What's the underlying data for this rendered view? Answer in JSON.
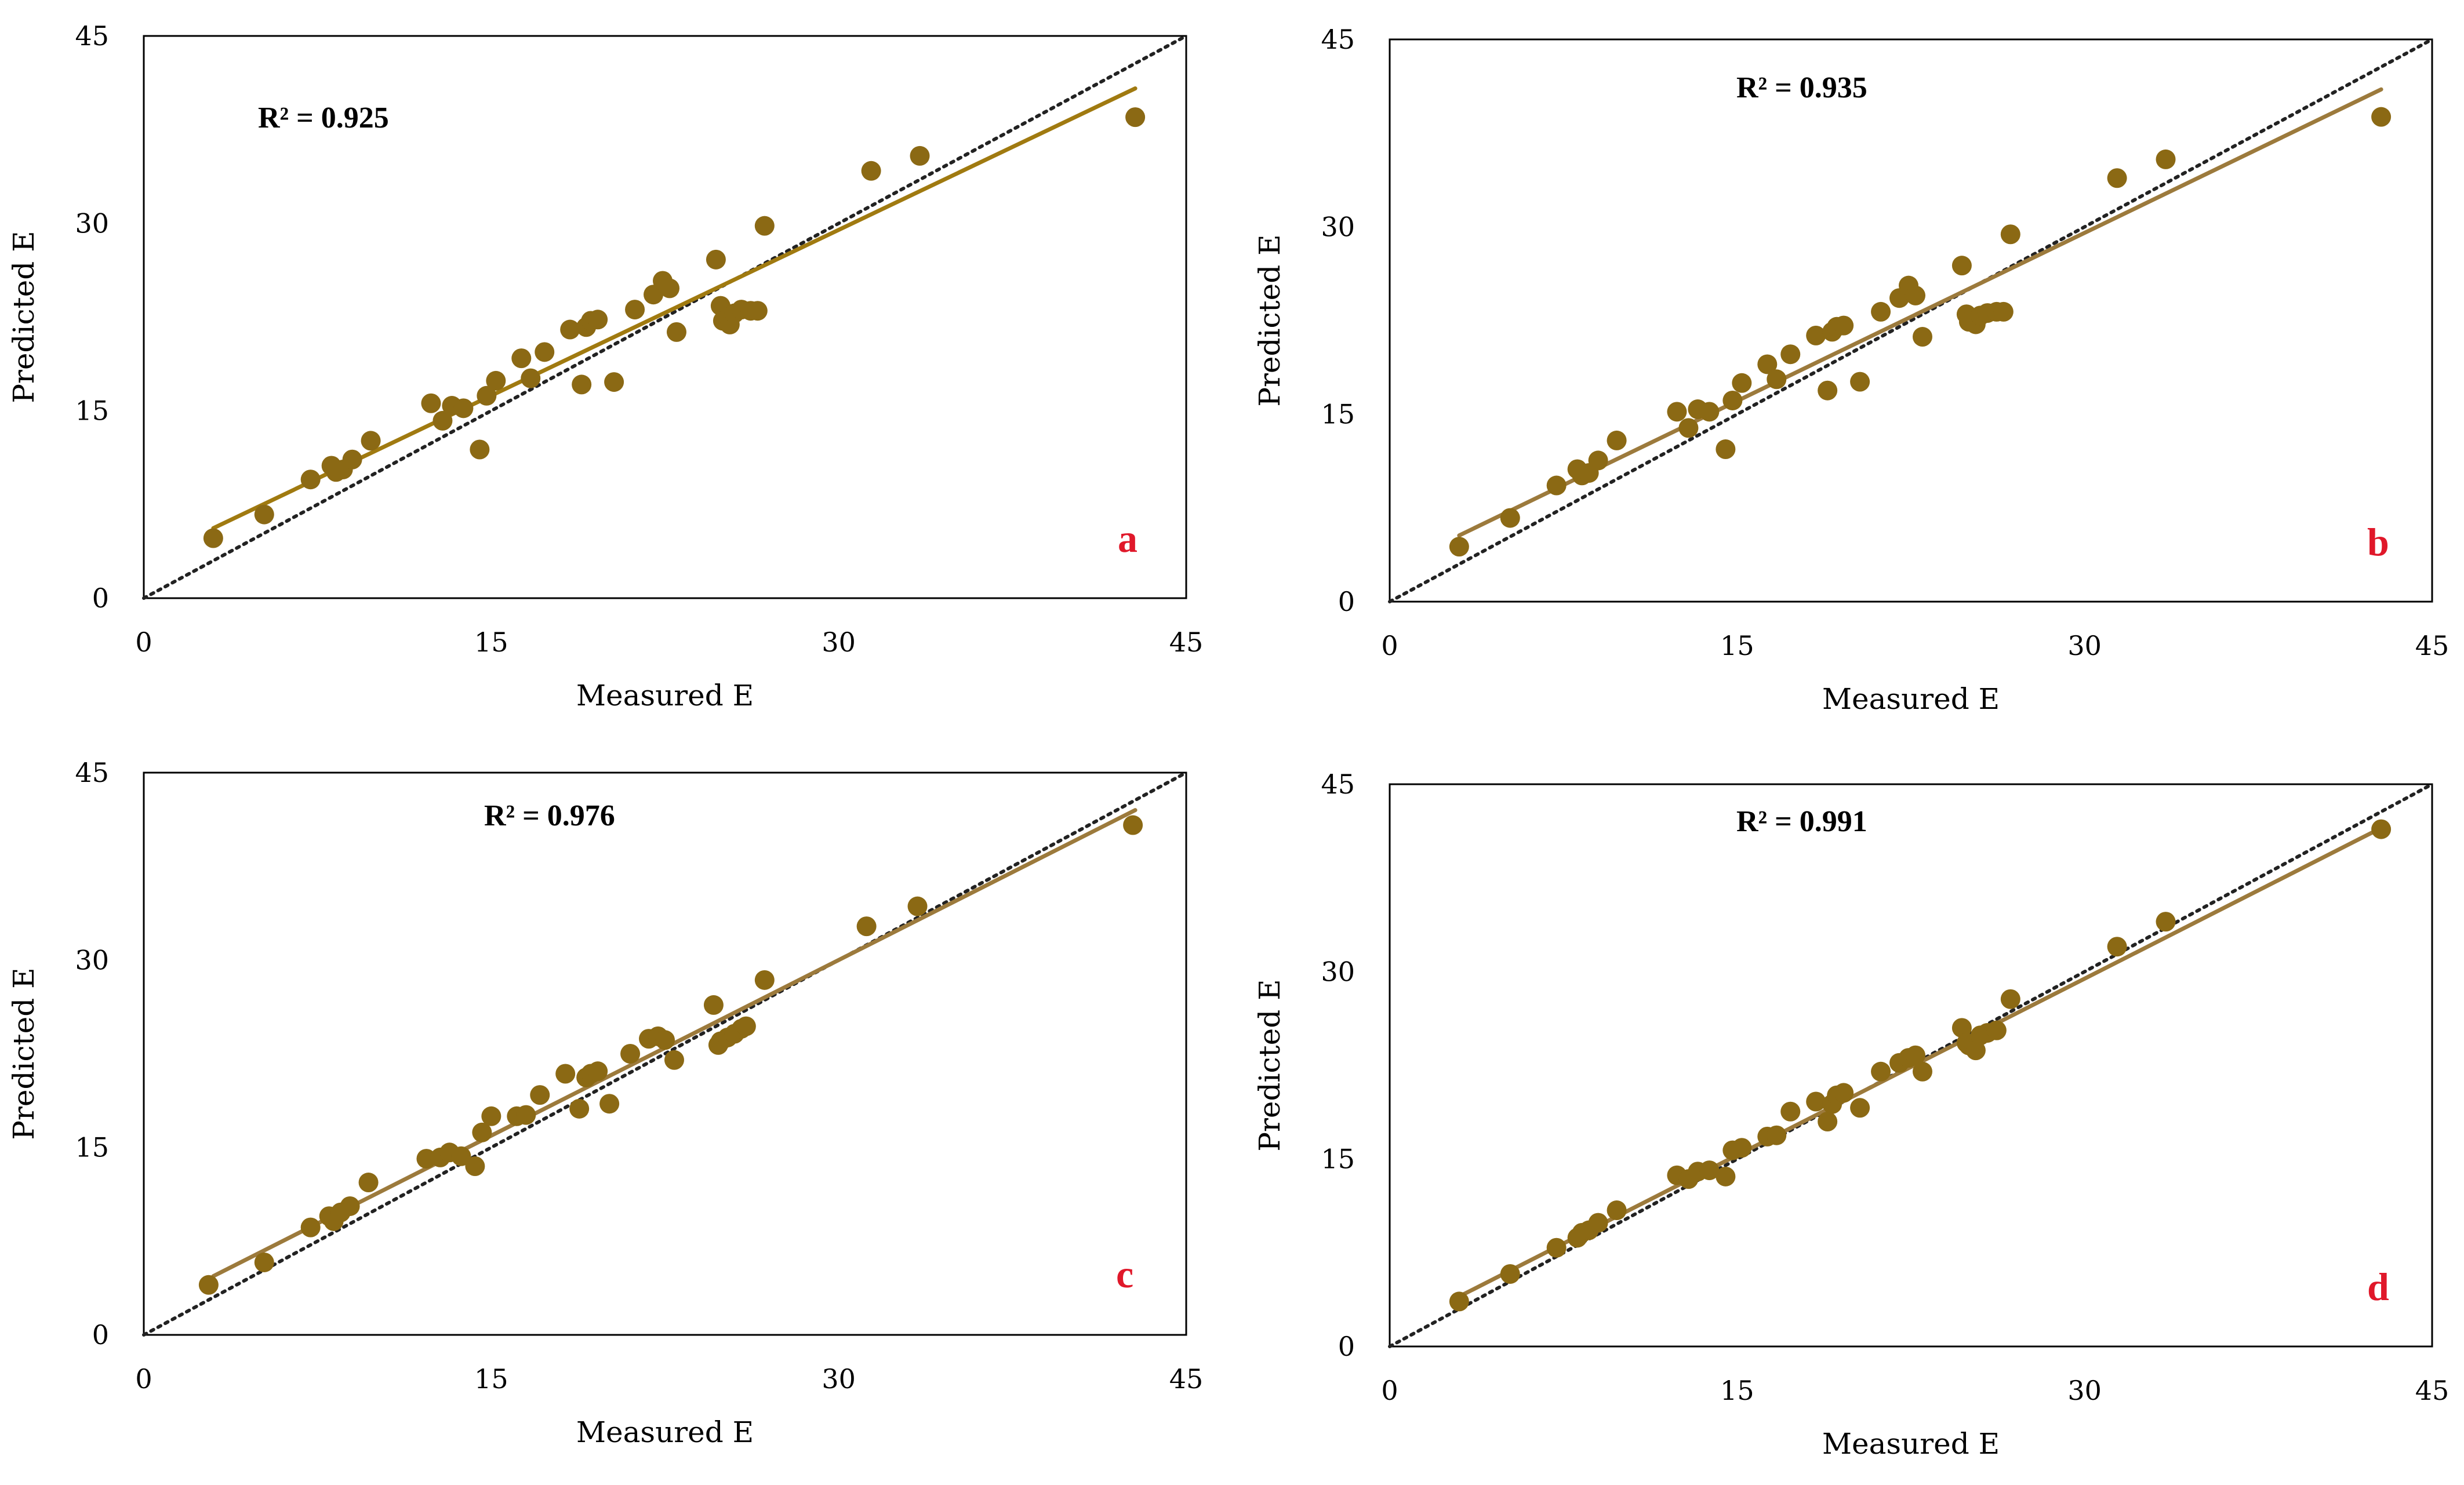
{
  "style": {
    "point_color": "#8B6914",
    "fit_color_a": "#A07A10",
    "fit_color": "#9C7A3C",
    "identity_color": "#222222",
    "letter_color": "#E0182A",
    "frame_color": "#000000"
  },
  "axes": {
    "xlabel": "Measured E",
    "ylabel": "Predicted E",
    "xlim": [
      0,
      45
    ],
    "ylim": [
      0,
      45
    ],
    "ticks": [
      "0",
      "15",
      "30",
      "45"
    ],
    "tick_values": [
      0,
      15,
      30,
      45
    ]
  },
  "chart_data": [
    {
      "type": "scatter",
      "panel": "a",
      "r2_text": "R² = 0.925",
      "xlabel": "Measured E",
      "ylabel": "Predicted E",
      "xlim": [
        0,
        45
      ],
      "ylim": [
        0,
        45
      ],
      "fit_line": {
        "x": [
          3,
          42.8
        ],
        "y": [
          5.6,
          40.8
        ]
      },
      "identity_line": {
        "x": [
          0,
          45
        ],
        "y": [
          0,
          45
        ]
      },
      "points": [
        [
          3,
          4.8
        ],
        [
          5.2,
          6.7
        ],
        [
          7.2,
          9.5
        ],
        [
          8.1,
          10.6
        ],
        [
          8.3,
          10.1
        ],
        [
          8.6,
          10.3
        ],
        [
          9,
          11.1
        ],
        [
          9.8,
          12.6
        ],
        [
          12.4,
          15.6
        ],
        [
          12.9,
          14.2
        ],
        [
          13.3,
          15.4
        ],
        [
          13.8,
          15.2
        ],
        [
          14.5,
          11.9
        ],
        [
          14.8,
          16.2
        ],
        [
          15.2,
          17.4
        ],
        [
          16.3,
          19.2
        ],
        [
          16.7,
          17.6
        ],
        [
          17.3,
          19.7
        ],
        [
          18.4,
          21.5
        ],
        [
          18.9,
          17.1
        ],
        [
          19.1,
          21.7
        ],
        [
          19.3,
          22.2
        ],
        [
          19.6,
          22.3
        ],
        [
          20.3,
          17.3
        ],
        [
          21.2,
          23.1
        ],
        [
          22,
          24.3
        ],
        [
          22.4,
          25.4
        ],
        [
          22.7,
          24.8
        ],
        [
          23,
          21.3
        ],
        [
          24.7,
          27.1
        ],
        [
          24.9,
          23.4
        ],
        [
          25,
          22.2
        ],
        [
          25.3,
          21.9
        ],
        [
          25.5,
          22.8
        ],
        [
          25.8,
          23.1
        ],
        [
          26.2,
          23
        ],
        [
          26.5,
          23
        ],
        [
          26.8,
          29.8
        ],
        [
          31.4,
          34.2
        ],
        [
          33.5,
          35.4
        ],
        [
          42.8,
          38.5
        ]
      ]
    },
    {
      "type": "scatter",
      "panel": "b",
      "r2_text": "R² = 0.935",
      "xlabel": "Measured E",
      "ylabel": "Predicted E",
      "xlim": [
        0,
        45
      ],
      "ylim": [
        0,
        45
      ],
      "fit_line": {
        "x": [
          3,
          42.8
        ],
        "y": [
          5.3,
          41
        ]
      },
      "identity_line": {
        "x": [
          0,
          45
        ],
        "y": [
          0,
          45
        ]
      },
      "points": [
        [
          3,
          4.4
        ],
        [
          5.2,
          6.7
        ],
        [
          7.2,
          9.3
        ],
        [
          8.1,
          10.6
        ],
        [
          8.3,
          10.1
        ],
        [
          8.6,
          10.3
        ],
        [
          9,
          11.3
        ],
        [
          9.8,
          12.9
        ],
        [
          12.4,
          15.2
        ],
        [
          12.9,
          13.9
        ],
        [
          13.3,
          15.4
        ],
        [
          13.8,
          15.2
        ],
        [
          14.5,
          12.2
        ],
        [
          14.8,
          16.1
        ],
        [
          15.2,
          17.5
        ],
        [
          16.3,
          19
        ],
        [
          16.7,
          17.8
        ],
        [
          17.3,
          19.8
        ],
        [
          18.4,
          21.3
        ],
        [
          18.9,
          16.9
        ],
        [
          19.1,
          21.6
        ],
        [
          19.3,
          22
        ],
        [
          19.6,
          22.1
        ],
        [
          20.3,
          17.6
        ],
        [
          21.2,
          23.2
        ],
        [
          22,
          24.3
        ],
        [
          22.4,
          25.3
        ],
        [
          22.7,
          24.5
        ],
        [
          23,
          21.2
        ],
        [
          24.7,
          26.9
        ],
        [
          24.9,
          23
        ],
        [
          25,
          22.4
        ],
        [
          25.3,
          22.2
        ],
        [
          25.5,
          22.9
        ],
        [
          25.8,
          23.1
        ],
        [
          26.2,
          23.2
        ],
        [
          26.5,
          23.2
        ],
        [
          26.8,
          29.4
        ],
        [
          31.4,
          33.9
        ],
        [
          33.5,
          35.4
        ],
        [
          42.8,
          38.8
        ]
      ]
    },
    {
      "type": "scatter",
      "panel": "c",
      "r2_text": "R² = 0.976",
      "xlabel": "Measured E",
      "ylabel": "Predicted E",
      "xlim": [
        0,
        45
      ],
      "ylim": [
        0,
        45
      ],
      "fit_line": {
        "x": [
          3,
          42.8
        ],
        "y": [
          4.7,
          42
        ]
      },
      "identity_line": {
        "x": [
          0,
          45
        ],
        "y": [
          0,
          45
        ]
      },
      "points": [
        [
          2.8,
          4
        ],
        [
          5.2,
          5.8
        ],
        [
          7.2,
          8.6
        ],
        [
          8,
          9.5
        ],
        [
          8.2,
          9.1
        ],
        [
          8.5,
          9.8
        ],
        [
          8.9,
          10.3
        ],
        [
          9.7,
          12.2
        ],
        [
          12.2,
          14.1
        ],
        [
          12.8,
          14.2
        ],
        [
          13.2,
          14.6
        ],
        [
          13.7,
          14.3
        ],
        [
          14.3,
          13.5
        ],
        [
          14.6,
          16.2
        ],
        [
          15,
          17.5
        ],
        [
          16.1,
          17.5
        ],
        [
          16.5,
          17.6
        ],
        [
          17.1,
          19.2
        ],
        [
          18.2,
          20.9
        ],
        [
          18.8,
          18.1
        ],
        [
          19.1,
          20.6
        ],
        [
          19.3,
          20.9
        ],
        [
          19.6,
          21.1
        ],
        [
          20.1,
          18.5
        ],
        [
          21,
          22.5
        ],
        [
          21.8,
          23.7
        ],
        [
          22.2,
          23.9
        ],
        [
          22.5,
          23.6
        ],
        [
          22.9,
          22
        ],
        [
          24.6,
          26.4
        ],
        [
          24.8,
          23.2
        ],
        [
          24.9,
          23.5
        ],
        [
          25.2,
          23.8
        ],
        [
          25.5,
          24.1
        ],
        [
          25.8,
          24.5
        ],
        [
          26,
          24.7
        ],
        [
          26.8,
          28.4
        ],
        [
          31.2,
          32.7
        ],
        [
          33.4,
          34.3
        ],
        [
          42.7,
          40.8
        ]
      ]
    },
    {
      "type": "scatter",
      "panel": "d",
      "r2_text": "R² = 0.991",
      "xlabel": "Measured E",
      "ylabel": "Predicted E",
      "xlim": [
        0,
        45
      ],
      "ylim": [
        0,
        45
      ],
      "fit_line": {
        "x": [
          3,
          42.8
        ],
        "y": [
          4,
          41.5
        ]
      },
      "identity_line": {
        "x": [
          0,
          45
        ],
        "y": [
          0,
          45
        ]
      },
      "points": [
        [
          3,
          3.6
        ],
        [
          5.2,
          5.8
        ],
        [
          7.2,
          7.9
        ],
        [
          8.1,
          8.7
        ],
        [
          8.3,
          9.1
        ],
        [
          8.6,
          9.3
        ],
        [
          9,
          9.9
        ],
        [
          9.8,
          10.9
        ],
        [
          12.4,
          13.7
        ],
        [
          12.9,
          13.4
        ],
        [
          13.3,
          14
        ],
        [
          13.8,
          14.1
        ],
        [
          14.5,
          13.6
        ],
        [
          14.8,
          15.7
        ],
        [
          15.2,
          15.9
        ],
        [
          16.3,
          16.8
        ],
        [
          16.7,
          16.9
        ],
        [
          17.3,
          18.8
        ],
        [
          18.4,
          19.6
        ],
        [
          18.9,
          18
        ],
        [
          19.1,
          19.4
        ],
        [
          19.3,
          20.1
        ],
        [
          19.6,
          20.3
        ],
        [
          20.3,
          19.1
        ],
        [
          21.2,
          22
        ],
        [
          22,
          22.7
        ],
        [
          22.4,
          23.1
        ],
        [
          22.7,
          23.3
        ],
        [
          23,
          22
        ],
        [
          24.7,
          25.5
        ],
        [
          24.9,
          24.3
        ],
        [
          25,
          24.1
        ],
        [
          25.3,
          23.7
        ],
        [
          25.5,
          24.9
        ],
        [
          25.8,
          25.1
        ],
        [
          26.2,
          25.3
        ],
        [
          26.8,
          27.8
        ],
        [
          31.4,
          32
        ],
        [
          33.5,
          34
        ],
        [
          42.8,
          41.4
        ]
      ]
    }
  ]
}
